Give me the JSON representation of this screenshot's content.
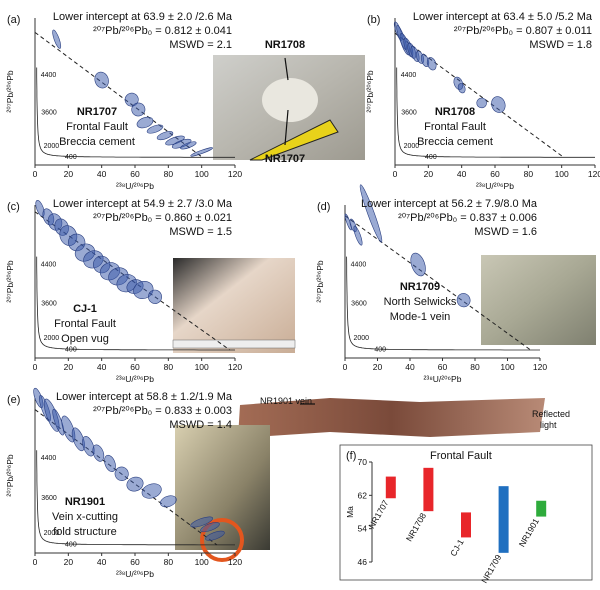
{
  "chart_data": [
    {
      "type": "ellipse",
      "label": "(a)",
      "lines": [
        "Lower intercept at 63.9 ± 2.0 /2.6 Ma",
        "²⁰⁷Pb/²⁰⁶Pb₀ = 0.812 ± 0.041",
        "MSWD = 2.1"
      ],
      "sample": [
        "NR1707",
        "Frontal Fault",
        "Breccia cement"
      ],
      "intercept_age": 63.9,
      "pb0": 0.812,
      "x_label": "²³⁸U/²⁰⁶Pb",
      "y_label": "²⁰⁷Pb/²⁰⁶Pb",
      "xlim": [
        0,
        120
      ],
      "ylim": [
        0,
        0.9
      ],
      "xticks": [
        0,
        20,
        40,
        60,
        80,
        100,
        120
      ],
      "concordia_ages": [
        4400,
        3600,
        2000,
        400
      ],
      "photo_labels": [
        "NR1708",
        "NR1707"
      ],
      "points": {
        "x": [
          13,
          40,
          58,
          62,
          66,
          72,
          78,
          84,
          88,
          92,
          100
        ],
        "y": [
          0.77,
          0.52,
          0.4,
          0.34,
          0.26,
          0.22,
          0.18,
          0.15,
          0.13,
          0.12,
          0.08
        ],
        "sx": [
          1.5,
          4,
          4,
          4,
          5,
          5,
          5,
          6,
          6,
          5,
          7
        ],
        "sy": [
          0.06,
          0.05,
          0.04,
          0.04,
          0.03,
          0.02,
          0.02,
          0.02,
          0.02,
          0.015,
          0.01
        ]
      }
    },
    {
      "type": "ellipse",
      "label": "(b)",
      "lines": [
        "Lower intercept at 63.4 ± 5.0 /5.2 Ma",
        "²⁰⁷Pb/²⁰⁶Pb₀ = 0.807 ± 0.011",
        "MSWD = 1.8"
      ],
      "sample": [
        "NR1708",
        "Frontal Fault",
        "Breccia cement"
      ],
      "intercept_age": 63.4,
      "pb0": 0.807,
      "x_label": "²³⁸U/²⁰⁶Pb",
      "y_label": "²⁰⁷Pb/²⁰⁶Pb",
      "xlim": [
        0,
        120
      ],
      "ylim": [
        0,
        0.9
      ],
      "xticks": [
        0,
        20,
        40,
        60,
        80,
        100,
        120
      ],
      "concordia_ages": [
        4400,
        3600,
        2000,
        400
      ],
      "points": {
        "x": [
          2,
          4,
          6,
          8,
          10,
          12,
          15,
          18,
          22,
          38,
          40,
          52,
          62
        ],
        "y": [
          0.82,
          0.78,
          0.74,
          0.72,
          0.7,
          0.68,
          0.66,
          0.64,
          0.62,
          0.5,
          0.47,
          0.38,
          0.37
        ],
        "sx": [
          1.5,
          1.5,
          2,
          2,
          2,
          2,
          2,
          2,
          2.5,
          2.5,
          2,
          3,
          4
        ],
        "sy": [
          0.06,
          0.08,
          0.07,
          0.06,
          0.05,
          0.05,
          0.04,
          0.04,
          0.04,
          0.04,
          0.03,
          0.03,
          0.05
        ]
      }
    },
    {
      "type": "ellipse",
      "label": "(c)",
      "lines": [
        "Lower intercept at 54.9 ± 2.7 /3.0 Ma",
        "²⁰⁷Pb/²⁰⁶Pb₀ = 0.860 ± 0.021",
        "MSWD = 1.5"
      ],
      "sample": [
        "CJ-1",
        "Frontal Fault",
        "Open vug"
      ],
      "intercept_age": 54.9,
      "pb0": 0.86,
      "x_label": "²³⁸U/²⁰⁶Pb",
      "y_label": "²⁰⁷Pb/²⁰⁶Pb",
      "xlim": [
        0,
        120
      ],
      "ylim": [
        0,
        0.9
      ],
      "xticks": [
        0,
        20,
        40,
        60,
        80,
        100,
        120
      ],
      "concordia_ages": [
        4400,
        3600,
        2000,
        400
      ],
      "points": {
        "x": [
          3,
          8,
          12,
          16,
          20,
          25,
          30,
          35,
          40,
          45,
          50,
          55,
          60,
          65,
          72
        ],
        "y": [
          0.88,
          0.83,
          0.8,
          0.77,
          0.72,
          0.68,
          0.62,
          0.58,
          0.55,
          0.51,
          0.48,
          0.44,
          0.42,
          0.4,
          0.36
        ],
        "sx": [
          2,
          3,
          4,
          4,
          5,
          5,
          6,
          6,
          5,
          6,
          6,
          6,
          5,
          6,
          4
        ],
        "sy": [
          0.05,
          0.05,
          0.05,
          0.05,
          0.06,
          0.05,
          0.05,
          0.05,
          0.05,
          0.05,
          0.05,
          0.05,
          0.04,
          0.05,
          0.04
        ]
      }
    },
    {
      "type": "ellipse",
      "label": "(d)",
      "lines": [
        "Lower intercept at 56.2 ± 7.9/8.0 Ma",
        "²⁰⁷Pb/²⁰⁶Pb₀ = 0.837 ± 0.006",
        "MSWD = 1.6"
      ],
      "sample": [
        "NR1709",
        "North Selwicks",
        "Mode-1 vein"
      ],
      "intercept_age": 56.2,
      "pb0": 0.837,
      "x_label": "²³⁸U/²⁰⁶Pb",
      "y_label": "²⁰⁷Pb/²⁰⁶Pb",
      "xlim": [
        0,
        120
      ],
      "ylim": [
        0,
        0.9
      ],
      "xticks": [
        0,
        20,
        40,
        60,
        80,
        100,
        120
      ],
      "concordia_ages": [
        4400,
        3600,
        2000,
        400
      ],
      "points": {
        "x": [
          2,
          5,
          8,
          16,
          45,
          73
        ],
        "y": [
          0.8,
          0.78,
          0.72,
          0.85,
          0.55,
          0.34
        ],
        "sx": [
          1,
          1.5,
          1.5,
          2,
          4,
          4
        ],
        "sy": [
          0.05,
          0.04,
          0.06,
          0.18,
          0.07,
          0.04
        ]
      }
    },
    {
      "type": "ellipse",
      "label": "(e)",
      "lines": [
        "Lower intercept at 58.8 ± 1.2/1.9 Ma",
        "²⁰⁷Pb/²⁰⁶Pb₀ = 0.833 ± 0.003",
        "MSWD = 1.4"
      ],
      "sample": [
        "NR1901",
        "Vein x-cutting",
        "fold structure"
      ],
      "intercept_age": 58.8,
      "pb0": 0.833,
      "x_label": "²³⁸U/²⁰⁶Pb",
      "y_label": "²⁰⁷Pb/²⁰⁶Pb",
      "xlim": [
        0,
        120
      ],
      "ylim": [
        0,
        0.9
      ],
      "xticks": [
        0,
        20,
        40,
        60,
        80,
        100,
        120
      ],
      "concordia_ages": [
        4400,
        3600,
        2000,
        400
      ],
      "photo_labels": [
        "NR1901 vein",
        "Reflected",
        "light"
      ],
      "points": {
        "x": [
          2,
          6,
          10,
          14,
          20,
          26,
          32,
          38,
          45,
          52,
          60,
          70,
          80,
          100,
          105,
          108
        ],
        "y": [
          0.9,
          0.84,
          0.8,
          0.76,
          0.72,
          0.66,
          0.62,
          0.58,
          0.52,
          0.46,
          0.4,
          0.36,
          0.3,
          0.18,
          0.15,
          0.1
        ],
        "sx": [
          2,
          2,
          3,
          2,
          3,
          3,
          3,
          3,
          3,
          4,
          5,
          6,
          5,
          7,
          6,
          6
        ],
        "sy": [
          0.06,
          0.08,
          0.1,
          0.08,
          0.08,
          0.07,
          0.06,
          0.05,
          0.05,
          0.04,
          0.04,
          0.04,
          0.03,
          0.02,
          0.02,
          0.02
        ]
      }
    },
    {
      "type": "range",
      "label": "(f)",
      "title": "Frontal Fault",
      "y_label": "Ma",
      "categories": [
        "NR1707",
        "NR1708",
        "CJ-1",
        "NR1709",
        "NR1901"
      ],
      "low": [
        61.3,
        58.2,
        51.9,
        48.2,
        56.9
      ],
      "high": [
        66.5,
        68.6,
        57.9,
        64.2,
        60.7
      ],
      "colors": [
        "#e8262a",
        "#e8262a",
        "#e8262a",
        "#1f6fc0",
        "#2eab3c"
      ],
      "ylim": [
        46,
        70
      ],
      "yticks": [
        46,
        54,
        62,
        70
      ]
    }
  ]
}
